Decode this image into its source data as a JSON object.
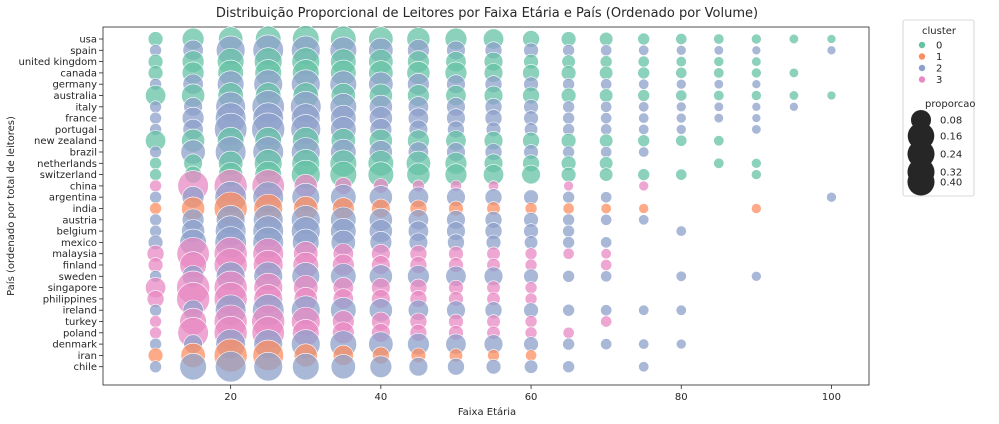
{
  "chart_data": {
    "type": "scatter",
    "title": "Distribuição Proporcional de Leitores por Faixa Etária e País (Ordenado por Volume)",
    "xlabel": "Faixa Etária",
    "ylabel": "País (ordenado por total de leitores)",
    "xlim": [
      3,
      105
    ],
    "x_ticks": [
      20,
      40,
      60,
      80,
      100
    ],
    "countries": [
      "usa",
      "spain",
      "united kingdom",
      "canada",
      "germany",
      "australia",
      "italy",
      "france",
      "portugal",
      "new zealand",
      "brazil",
      "netherlands",
      "switzerland",
      "china",
      "argentina",
      "india",
      "austria",
      "belgium",
      "mexico",
      "malaysia",
      "finland",
      "sweden",
      "singapore",
      "philippines",
      "ireland",
      "turkey",
      "poland",
      "denmark",
      "iran",
      "chile"
    ],
    "ages": [
      10,
      15,
      20,
      25,
      30,
      35,
      40,
      45,
      50,
      55,
      60,
      65,
      70,
      75,
      80,
      85,
      90,
      95,
      100
    ],
    "cluster_colors": {
      "0": "#66c2a5",
      "1": "#fc8d62",
      "2": "#8da0cb",
      "3": "#e78ac3"
    },
    "legend": {
      "cluster_title": "cluster",
      "clusters": [
        "0",
        "1",
        "2",
        "3"
      ],
      "size_title": "proporcao",
      "sizes": [
        0.08,
        0.16,
        0.24,
        0.32,
        0.4
      ],
      "size_labels": [
        "0.08",
        "0.16",
        "0.24",
        "0.32",
        "0.40"
      ],
      "placement": "outside-right"
    },
    "series": [
      {
        "country": "usa",
        "cluster": "0",
        "x": [
          10,
          15,
          20,
          25,
          30,
          35,
          40,
          45,
          50,
          55,
          60,
          65,
          70,
          75,
          80,
          85,
          90,
          95,
          100
        ],
        "y": [
          0.02,
          0.06,
          0.08,
          0.09,
          0.1,
          0.09,
          0.08,
          0.07,
          0.06,
          0.05,
          0.03,
          0.02,
          0.015,
          0.01,
          0.008,
          0.006,
          0.005,
          0.004,
          0.003
        ]
      },
      {
        "country": "spain",
        "cluster": "2",
        "x": [
          10,
          15,
          20,
          25,
          30,
          35,
          40,
          45,
          50,
          55,
          60,
          65,
          70,
          75,
          80,
          85,
          90,
          100
        ],
        "y": [
          0.01,
          0.05,
          0.12,
          0.14,
          0.12,
          0.1,
          0.08,
          0.06,
          0.04,
          0.03,
          0.02,
          0.01,
          0.008,
          0.006,
          0.005,
          0.004,
          0.003,
          0.003
        ]
      },
      {
        "country": "united kingdom",
        "cluster": "0",
        "x": [
          10,
          15,
          20,
          25,
          30,
          35,
          40,
          45,
          50,
          55,
          60,
          65,
          70,
          75,
          80,
          85,
          90
        ],
        "y": [
          0.02,
          0.06,
          0.1,
          0.11,
          0.11,
          0.09,
          0.08,
          0.06,
          0.05,
          0.04,
          0.02,
          0.015,
          0.01,
          0.008,
          0.006,
          0.005,
          0.004
        ]
      },
      {
        "country": "canada",
        "cluster": "0",
        "x": [
          10,
          15,
          20,
          25,
          30,
          35,
          40,
          45,
          50,
          55,
          60,
          65,
          70,
          75,
          80,
          85,
          90,
          95
        ],
        "y": [
          0.02,
          0.06,
          0.09,
          0.1,
          0.1,
          0.09,
          0.08,
          0.07,
          0.06,
          0.04,
          0.03,
          0.02,
          0.015,
          0.01,
          0.008,
          0.006,
          0.005,
          0.004
        ]
      },
      {
        "country": "germany",
        "cluster": "2",
        "x": [
          10,
          15,
          20,
          25,
          30,
          35,
          40,
          45,
          50,
          55,
          60,
          65,
          70,
          75,
          80,
          85,
          90
        ],
        "y": [
          0.01,
          0.05,
          0.1,
          0.12,
          0.12,
          0.1,
          0.08,
          0.06,
          0.04,
          0.03,
          0.02,
          0.01,
          0.008,
          0.006,
          0.005,
          0.004,
          0.003
        ]
      },
      {
        "country": "australia",
        "cluster": "0",
        "x": [
          10,
          15,
          20,
          25,
          30,
          35,
          40,
          45,
          50,
          55,
          60,
          65,
          70,
          75,
          80,
          85,
          90,
          95,
          100
        ],
        "y": [
          0.05,
          0.07,
          0.09,
          0.09,
          0.09,
          0.08,
          0.07,
          0.06,
          0.05,
          0.04,
          0.03,
          0.02,
          0.015,
          0.01,
          0.008,
          0.006,
          0.005,
          0.004,
          0.003
        ]
      },
      {
        "country": "italy",
        "cluster": "2",
        "x": [
          10,
          15,
          20,
          25,
          30,
          35,
          40,
          45,
          50,
          55,
          60,
          65,
          70,
          75,
          80,
          85,
          90,
          95
        ],
        "y": [
          0.01,
          0.04,
          0.13,
          0.16,
          0.14,
          0.1,
          0.07,
          0.05,
          0.04,
          0.03,
          0.02,
          0.01,
          0.008,
          0.006,
          0.005,
          0.004,
          0.003,
          0.003
        ]
      },
      {
        "country": "france",
        "cluster": "2",
        "x": [
          10,
          15,
          20,
          25,
          30,
          35,
          40,
          45,
          50,
          55,
          60,
          65,
          70,
          75,
          80,
          85,
          90
        ],
        "y": [
          0.01,
          0.06,
          0.14,
          0.14,
          0.12,
          0.09,
          0.07,
          0.05,
          0.04,
          0.03,
          0.02,
          0.01,
          0.008,
          0.006,
          0.005,
          0.004,
          0.003
        ]
      },
      {
        "country": "portugal",
        "cluster": "2",
        "x": [
          10,
          15,
          20,
          25,
          30,
          35,
          40,
          45,
          50,
          55,
          60,
          65,
          70,
          75,
          80,
          90
        ],
        "y": [
          0.01,
          0.05,
          0.16,
          0.18,
          0.13,
          0.09,
          0.06,
          0.04,
          0.03,
          0.02,
          0.015,
          0.01,
          0.008,
          0.006,
          0.005,
          0.004
        ]
      },
      {
        "country": "new zealand",
        "cluster": "0",
        "x": [
          10,
          15,
          20,
          25,
          30,
          35,
          40,
          45,
          50,
          55,
          60,
          65,
          70,
          75,
          80,
          85
        ],
        "y": [
          0.05,
          0.07,
          0.1,
          0.1,
          0.1,
          0.08,
          0.07,
          0.06,
          0.05,
          0.04,
          0.03,
          0.02,
          0.015,
          0.01,
          0.008,
          0.006
        ]
      },
      {
        "country": "brazil",
        "cluster": "2",
        "x": [
          10,
          15,
          20,
          25,
          30,
          35,
          40,
          45,
          50,
          55,
          60,
          65,
          70,
          75
        ],
        "y": [
          0.01,
          0.08,
          0.14,
          0.14,
          0.12,
          0.09,
          0.07,
          0.05,
          0.04,
          0.03,
          0.02,
          0.01,
          0.008,
          0.006
        ]
      },
      {
        "country": "netherlands",
        "cluster": "0",
        "x": [
          10,
          15,
          20,
          25,
          30,
          35,
          40,
          45,
          50,
          55,
          60,
          65,
          70,
          85,
          90
        ],
        "y": [
          0.01,
          0.04,
          0.08,
          0.11,
          0.11,
          0.1,
          0.09,
          0.08,
          0.06,
          0.04,
          0.03,
          0.02,
          0.015,
          0.006,
          0.005
        ]
      },
      {
        "country": "switzerland",
        "cluster": "0",
        "x": [
          10,
          15,
          20,
          25,
          30,
          35,
          40,
          45,
          50,
          55,
          60,
          65,
          70,
          75,
          80,
          90
        ],
        "y": [
          0.01,
          0.03,
          0.08,
          0.1,
          0.12,
          0.1,
          0.09,
          0.07,
          0.06,
          0.05,
          0.04,
          0.02,
          0.015,
          0.01,
          0.008,
          0.005
        ]
      },
      {
        "country": "china",
        "cluster": "3",
        "x": [
          10,
          15,
          20,
          25,
          30,
          35,
          40,
          45,
          50,
          55,
          65,
          75
        ],
        "y": [
          0.01,
          0.14,
          0.26,
          0.16,
          0.07,
          0.03,
          0.02,
          0.01,
          0.008,
          0.006,
          0.005,
          0.005
        ]
      },
      {
        "country": "argentina",
        "cluster": "2",
        "x": [
          10,
          15,
          20,
          25,
          30,
          35,
          40,
          45,
          50,
          55,
          60,
          65,
          70,
          100
        ],
        "y": [
          0.01,
          0.06,
          0.15,
          0.14,
          0.11,
          0.09,
          0.07,
          0.05,
          0.04,
          0.03,
          0.02,
          0.01,
          0.008,
          0.005
        ]
      },
      {
        "country": "india",
        "cluster": "1",
        "x": [
          10,
          15,
          20,
          25,
          30,
          35,
          40,
          45,
          50,
          55,
          60,
          65,
          70,
          75,
          90
        ],
        "y": [
          0.01,
          0.07,
          0.3,
          0.12,
          0.08,
          0.06,
          0.04,
          0.03,
          0.02,
          0.015,
          0.01,
          0.008,
          0.006,
          0.005,
          0.005
        ]
      },
      {
        "country": "austria",
        "cluster": "2",
        "x": [
          10,
          15,
          20,
          25,
          30,
          35,
          40,
          45,
          50,
          55,
          60,
          65,
          70,
          75
        ],
        "y": [
          0.01,
          0.06,
          0.12,
          0.13,
          0.12,
          0.09,
          0.07,
          0.05,
          0.04,
          0.03,
          0.02,
          0.01,
          0.008,
          0.006
        ]
      },
      {
        "country": "belgium",
        "cluster": "2",
        "x": [
          10,
          15,
          20,
          25,
          30,
          35,
          40,
          45,
          50,
          55,
          60,
          65,
          80
        ],
        "y": [
          0.01,
          0.07,
          0.14,
          0.14,
          0.12,
          0.09,
          0.07,
          0.05,
          0.04,
          0.03,
          0.02,
          0.01,
          0.006
        ]
      },
      {
        "country": "mexico",
        "cluster": "2",
        "x": [
          10,
          15,
          20,
          25,
          30,
          35,
          40,
          45,
          50,
          55,
          60,
          65,
          70
        ],
        "y": [
          0.02,
          0.1,
          0.15,
          0.14,
          0.1,
          0.08,
          0.06,
          0.04,
          0.03,
          0.02,
          0.015,
          0.01,
          0.008
        ]
      },
      {
        "country": "malaysia",
        "cluster": "3",
        "x": [
          10,
          15,
          20,
          25,
          30,
          35,
          40,
          45,
          50,
          55,
          60,
          65,
          70
        ],
        "y": [
          0.03,
          0.16,
          0.2,
          0.14,
          0.08,
          0.05,
          0.04,
          0.03,
          0.02,
          0.015,
          0.01,
          0.008,
          0.006
        ]
      },
      {
        "country": "finland",
        "cluster": "3",
        "x": [
          10,
          15,
          20,
          25,
          30,
          35,
          40,
          45,
          50,
          55,
          60,
          70
        ],
        "y": [
          0.02,
          0.1,
          0.17,
          0.13,
          0.09,
          0.06,
          0.04,
          0.03,
          0.02,
          0.015,
          0.01,
          0.008
        ]
      },
      {
        "country": "sweden",
        "cluster": "2",
        "x": [
          10,
          15,
          20,
          25,
          30,
          35,
          40,
          45,
          50,
          55,
          60,
          65,
          70,
          80,
          90
        ],
        "y": [
          0.01,
          0.06,
          0.12,
          0.12,
          0.11,
          0.09,
          0.07,
          0.06,
          0.05,
          0.04,
          0.02,
          0.01,
          0.008,
          0.006,
          0.005
        ]
      },
      {
        "country": "singapore",
        "cluster": "3",
        "x": [
          10,
          15,
          20,
          25,
          30,
          35,
          40,
          45,
          50,
          55,
          60
        ],
        "y": [
          0.05,
          0.22,
          0.2,
          0.12,
          0.08,
          0.05,
          0.04,
          0.03,
          0.02,
          0.015,
          0.01
        ]
      },
      {
        "country": "philippines",
        "cluster": "3",
        "x": [
          10,
          15,
          20,
          25,
          30,
          35,
          40,
          45,
          50,
          55,
          60
        ],
        "y": [
          0.03,
          0.18,
          0.22,
          0.12,
          0.07,
          0.05,
          0.04,
          0.03,
          0.02,
          0.015,
          0.01
        ]
      },
      {
        "country": "ireland",
        "cluster": "2",
        "x": [
          10,
          15,
          20,
          25,
          30,
          35,
          40,
          45,
          50,
          55,
          60,
          65,
          70,
          75,
          80
        ],
        "y": [
          0.01,
          0.05,
          0.14,
          0.15,
          0.12,
          0.09,
          0.07,
          0.05,
          0.04,
          0.03,
          0.02,
          0.01,
          0.008,
          0.006,
          0.006
        ]
      },
      {
        "country": "turkey",
        "cluster": "3",
        "x": [
          10,
          15,
          20,
          25,
          30,
          35,
          40,
          45,
          50,
          55,
          60,
          70
        ],
        "y": [
          0.01,
          0.1,
          0.2,
          0.18,
          0.12,
          0.06,
          0.04,
          0.03,
          0.02,
          0.015,
          0.01,
          0.008
        ]
      },
      {
        "country": "poland",
        "cluster": "3",
        "x": [
          10,
          15,
          20,
          25,
          30,
          35,
          40,
          45,
          50,
          55,
          60,
          65
        ],
        "y": [
          0.01,
          0.14,
          0.2,
          0.16,
          0.1,
          0.06,
          0.04,
          0.03,
          0.02,
          0.015,
          0.01,
          0.008
        ]
      },
      {
        "country": "denmark",
        "cluster": "2",
        "x": [
          10,
          15,
          20,
          25,
          30,
          35,
          40,
          45,
          50,
          55,
          60,
          65,
          70,
          75,
          80
        ],
        "y": [
          0.01,
          0.04,
          0.13,
          0.12,
          0.12,
          0.1,
          0.08,
          0.06,
          0.05,
          0.04,
          0.02,
          0.01,
          0.008,
          0.006,
          0.005
        ]
      },
      {
        "country": "iran",
        "cluster": "1",
        "x": [
          10,
          15,
          20,
          25,
          30,
          35,
          40,
          45,
          50,
          55,
          60
        ],
        "y": [
          0.02,
          0.08,
          0.4,
          0.14,
          0.07,
          0.05,
          0.03,
          0.02,
          0.015,
          0.01,
          0.008
        ]
      },
      {
        "country": "chile",
        "cluster": "2",
        "x": [
          10,
          15,
          20,
          25,
          30,
          35,
          40,
          45,
          50,
          55,
          60,
          65,
          75
        ],
        "y": [
          0.01,
          0.1,
          0.14,
          0.12,
          0.1,
          0.08,
          0.06,
          0.04,
          0.03,
          0.02,
          0.015,
          0.01,
          0.006
        ]
      }
    ]
  }
}
